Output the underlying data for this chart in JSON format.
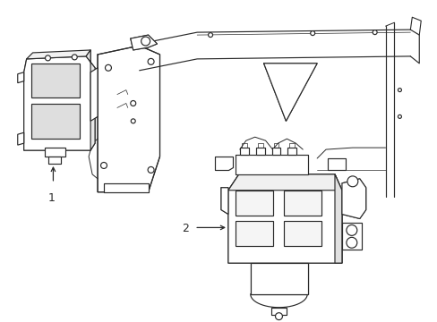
{
  "bg_color": "#ffffff",
  "line_color": "#2a2a2a",
  "label_color": "#2a2a2a",
  "label1": "1",
  "label2": "2",
  "fig_width": 4.89,
  "fig_height": 3.6,
  "dpi": 100
}
